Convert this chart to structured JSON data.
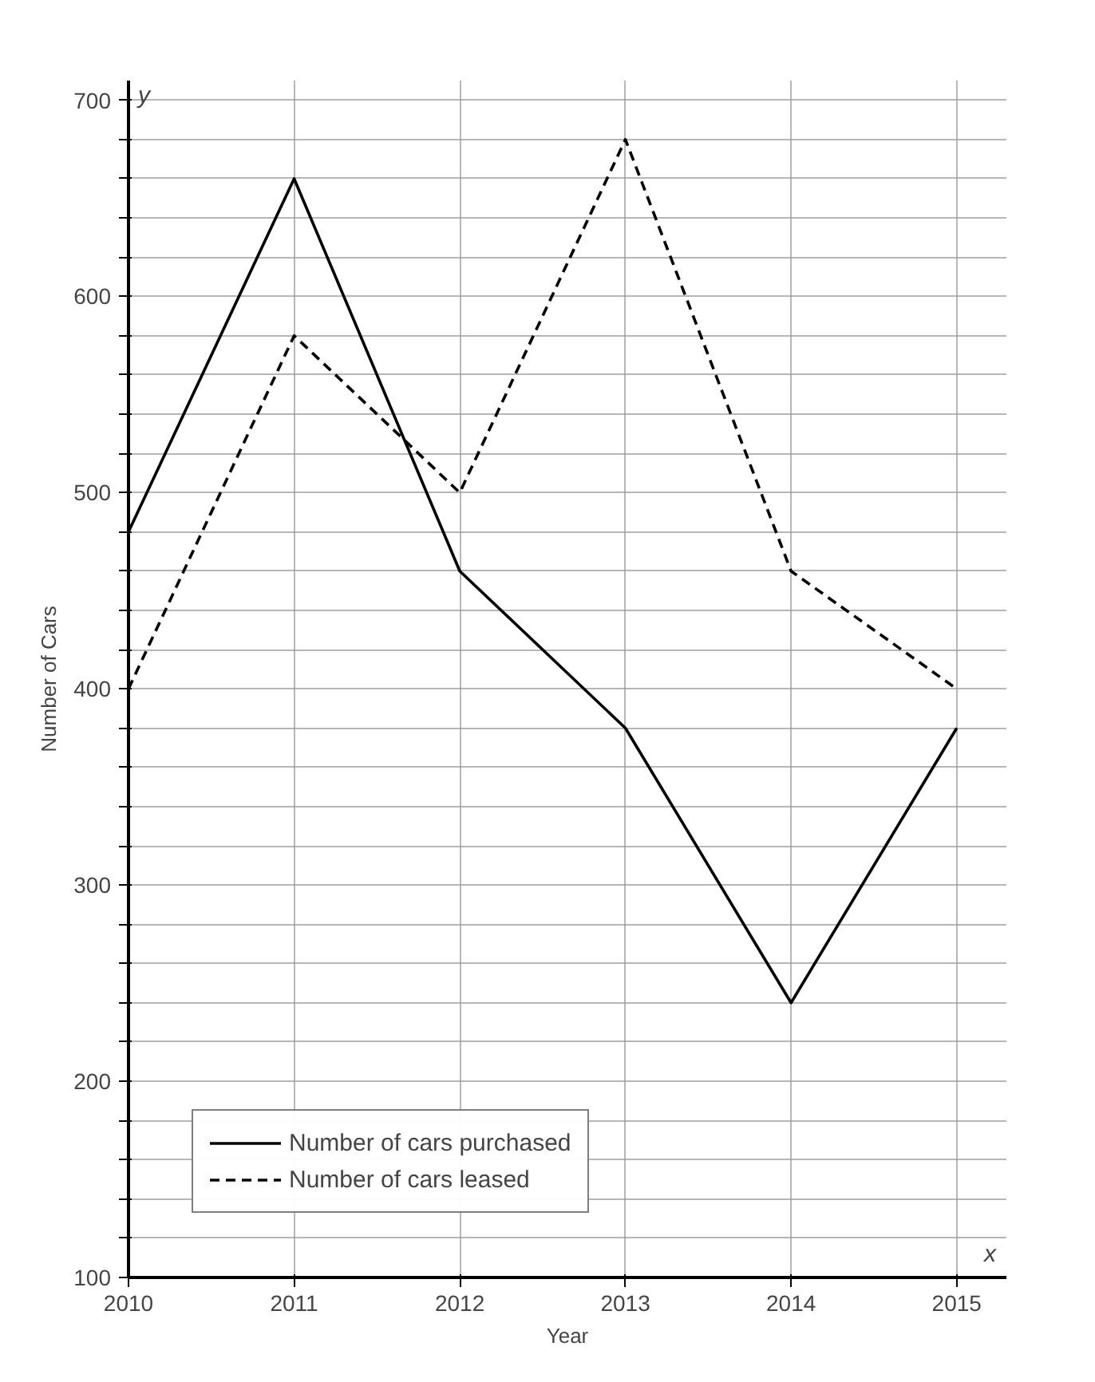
{
  "chart_data": {
    "type": "line",
    "xlabel": "Year",
    "ylabel": "Number of Cars",
    "x": [
      2010,
      2011,
      2012,
      2013,
      2014,
      2015
    ],
    "series": [
      {
        "name": "Number of cars purchased",
        "color": "#000000",
        "line_style": "solid",
        "values": [
          480,
          660,
          460,
          380,
          240,
          380
        ]
      },
      {
        "name": "Number of cars leased",
        "color": "#000000",
        "line_style": "dashed",
        "values": [
          400,
          580,
          500,
          680,
          460,
          400
        ]
      }
    ],
    "xlim": [
      2010,
      2015.3
    ],
    "ylim": [
      100,
      710
    ],
    "xticks": [
      2010,
      2011,
      2012,
      2013,
      2014,
      2015
    ],
    "yticks": [
      100,
      {
        "value": 120,
        "label": null
      },
      {
        "value": 140,
        "label": null
      },
      {
        "value": 160,
        "label": null
      },
      {
        "value": 180,
        "label": null
      },
      200,
      {
        "value": 220,
        "label": null
      },
      {
        "value": 240,
        "label": null
      },
      {
        "value": 260,
        "label": null
      },
      {
        "value": 280,
        "label": null
      },
      300,
      {
        "value": 320,
        "label": null
      },
      {
        "value": 340,
        "label": null
      },
      {
        "value": 360,
        "label": null
      },
      {
        "value": 380,
        "label": null
      },
      400,
      {
        "value": 420,
        "label": null
      },
      {
        "value": 440,
        "label": null
      },
      {
        "value": 460,
        "label": null
      },
      {
        "value": 480,
        "label": null
      },
      500,
      {
        "value": 520,
        "label": null
      },
      {
        "value": 540,
        "label": null
      },
      {
        "value": 560,
        "label": null
      },
      {
        "value": 580,
        "label": null
      },
      600,
      {
        "value": 620,
        "label": null
      },
      {
        "value": 640,
        "label": null
      },
      {
        "value": 660,
        "label": null
      },
      {
        "value": 680,
        "label": null
      },
      700
    ],
    "grid": true,
    "legend": "bottom left",
    "marker": "none",
    "annotations": [
      "y",
      "x"
    ]
  }
}
